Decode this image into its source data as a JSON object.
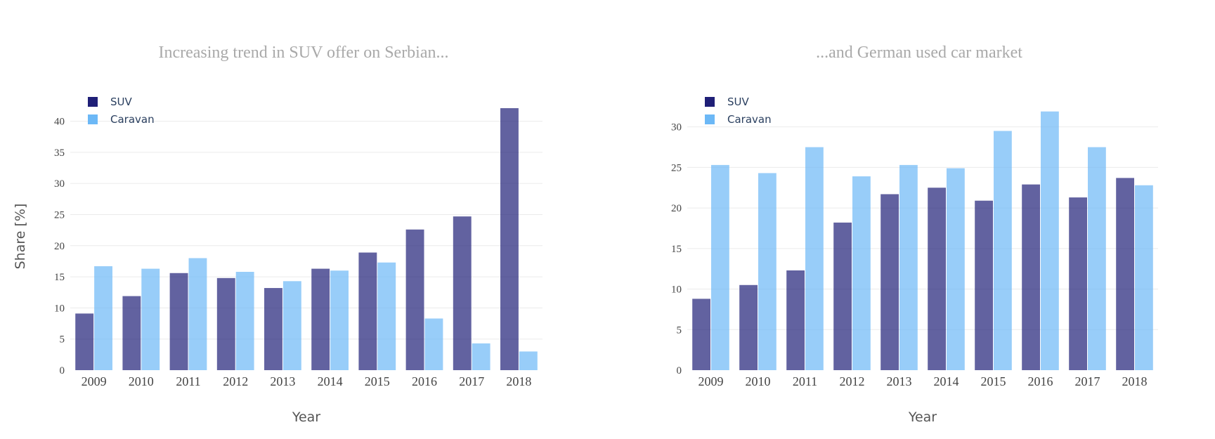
{
  "colors": {
    "suv": "#1f1f77",
    "caravan": "#6cb8f6"
  },
  "chart_data": [
    {
      "type": "bar",
      "title": "Increasing trend in SUV offer on Serbian...",
      "xlabel": "Year",
      "ylabel": "Share [%]",
      "ylim": [
        0,
        43
      ],
      "yticks": [
        0,
        5,
        10,
        15,
        20,
        25,
        30,
        35,
        40
      ],
      "grid": true,
      "legend": "top-left",
      "categories": [
        "2009",
        "2010",
        "2011",
        "2012",
        "2013",
        "2014",
        "2015",
        "2016",
        "2017",
        "2018"
      ],
      "series": [
        {
          "name": "SUV",
          "color": "#1f1f77",
          "values": [
            9.1,
            11.9,
            15.6,
            14.8,
            13.2,
            16.3,
            18.9,
            22.6,
            24.7,
            42.1
          ]
        },
        {
          "name": "Caravan",
          "color": "#6cb8f6",
          "values": [
            16.7,
            16.3,
            18.0,
            15.8,
            14.3,
            16.0,
            17.3,
            8.3,
            4.3,
            3.0
          ]
        }
      ]
    },
    {
      "type": "bar",
      "title": "...and German used car market",
      "xlabel": "Year",
      "ylabel": "",
      "ylim": [
        0,
        33
      ],
      "yticks": [
        0,
        5,
        10,
        15,
        20,
        25,
        30
      ],
      "grid": true,
      "legend": "top-left",
      "categories": [
        "2009",
        "2010",
        "2011",
        "2012",
        "2013",
        "2014",
        "2015",
        "2016",
        "2017",
        "2018"
      ],
      "series": [
        {
          "name": "SUV",
          "color": "#1f1f77",
          "values": [
            8.8,
            10.5,
            12.3,
            18.2,
            21.7,
            22.5,
            20.9,
            22.9,
            21.3,
            23.7
          ]
        },
        {
          "name": "Caravan",
          "color": "#6cb8f6",
          "values": [
            25.3,
            24.3,
            27.5,
            23.9,
            25.3,
            24.9,
            29.5,
            31.9,
            27.5,
            22.8
          ]
        }
      ]
    }
  ]
}
